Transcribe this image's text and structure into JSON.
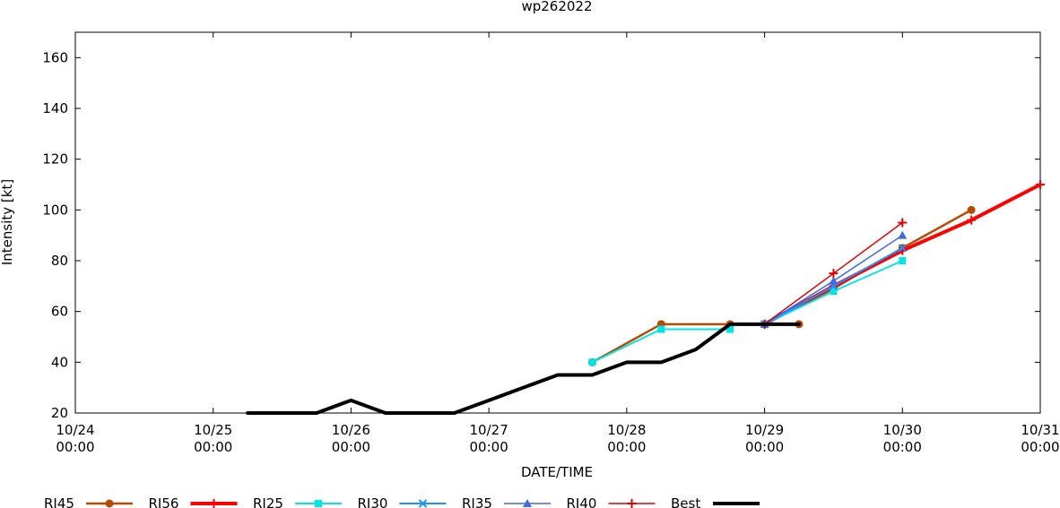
{
  "chart_data": {
    "type": "line",
    "title": "wp262022",
    "xlabel": "DATE/TIME",
    "ylabel": "Intensity [kt]",
    "x_ticks": [
      {
        "date": "10/24",
        "time": "00:00"
      },
      {
        "date": "10/25",
        "time": "00:00"
      },
      {
        "date": "10/26",
        "time": "00:00"
      },
      {
        "date": "10/27",
        "time": "00:00"
      },
      {
        "date": "10/28",
        "time": "00:00"
      },
      {
        "date": "10/29",
        "time": "00:00"
      },
      {
        "date": "10/30",
        "time": "00:00"
      },
      {
        "date": "10/31",
        "time": "00:00"
      }
    ],
    "xlim": [
      "10/24 00:00",
      "10/31 00:00"
    ],
    "ylim": [
      20,
      170
    ],
    "y_ticks": [
      20,
      40,
      60,
      80,
      100,
      120,
      140,
      160
    ],
    "grid": false,
    "legend_position": "bottom",
    "series": [
      {
        "name": "RI45",
        "color": "#b84a00",
        "width": 2.5,
        "marker": "circle",
        "points": [
          {
            "x": "10/28 06:00",
            "y": 55
          },
          {
            "x": "10/28 18:00",
            "y": 55
          },
          {
            "x": "10/29 00:00",
            "y": 55
          },
          {
            "x": "10/29 06:00",
            "y": 55
          }
        ]
      },
      {
        "name": "RI45",
        "color": "#b84a00",
        "width": 2.5,
        "marker": "circle",
        "points": [
          {
            "x": "10/27 18:00",
            "y": 40
          },
          {
            "x": "10/28 06:00",
            "y": 55
          }
        ]
      },
      {
        "name": "RI45",
        "color": "#b84a00",
        "width": 2.5,
        "marker": "circle",
        "points": [
          {
            "x": "10/29 00:00",
            "y": 55
          },
          {
            "x": "10/29 12:00",
            "y": 69
          },
          {
            "x": "10/30 00:00",
            "y": 85
          },
          {
            "x": "10/30 12:00",
            "y": 100
          }
        ]
      },
      {
        "name": "RI56",
        "color": "#ff0000",
        "width": 4,
        "marker": "plus",
        "points": [
          {
            "x": "10/29 00:00",
            "y": 55
          },
          {
            "x": "10/29 12:00",
            "y": 70
          },
          {
            "x": "10/30 00:00",
            "y": 84
          },
          {
            "x": "10/30 12:00",
            "y": 96
          },
          {
            "x": "10/31 00:00",
            "y": 110
          }
        ]
      },
      {
        "name": "RI25",
        "color": "#00e5e5",
        "width": 2,
        "marker": "square",
        "points": [
          {
            "x": "10/27 18:00",
            "y": 40
          },
          {
            "x": "10/28 06:00",
            "y": 53
          },
          {
            "x": "10/28 18:00",
            "y": 53
          }
        ]
      },
      {
        "name": "RI25",
        "color": "#00e5e5",
        "width": 2,
        "marker": "square",
        "points": [
          {
            "x": "10/29 00:00",
            "y": 55
          },
          {
            "x": "10/29 12:00",
            "y": 68
          },
          {
            "x": "10/30 00:00",
            "y": 80
          }
        ]
      },
      {
        "name": "RI30",
        "color": "#1e90ff",
        "width": 2,
        "marker": "x",
        "points": [
          {
            "x": "10/29 00:00",
            "y": 55
          },
          {
            "x": "10/29 12:00",
            "y": 70
          },
          {
            "x": "10/30 00:00",
            "y": 85
          }
        ]
      },
      {
        "name": "RI35",
        "color": "#4169e1",
        "width": 1.5,
        "marker": "triangle",
        "points": [
          {
            "x": "10/29 00:00",
            "y": 55
          },
          {
            "x": "10/29 12:00",
            "y": 72
          },
          {
            "x": "10/30 00:00",
            "y": 90
          }
        ]
      },
      {
        "name": "RI40",
        "color": "#e00000",
        "width": 1.5,
        "marker": "plus",
        "points": [
          {
            "x": "10/29 00:00",
            "y": 55
          },
          {
            "x": "10/29 12:00",
            "y": 75
          },
          {
            "x": "10/30 00:00",
            "y": 95
          }
        ]
      },
      {
        "name": "Best",
        "color": "#000000",
        "width": 4,
        "marker": "none",
        "points": [
          {
            "x": "10/25 06:00",
            "y": 20
          },
          {
            "x": "10/25 12:00",
            "y": 20
          },
          {
            "x": "10/25 18:00",
            "y": 20
          },
          {
            "x": "10/26 00:00",
            "y": 25
          },
          {
            "x": "10/26 06:00",
            "y": 20
          },
          {
            "x": "10/26 12:00",
            "y": 20
          },
          {
            "x": "10/26 18:00",
            "y": 20
          },
          {
            "x": "10/27 00:00",
            "y": 25
          },
          {
            "x": "10/27 06:00",
            "y": 30
          },
          {
            "x": "10/27 12:00",
            "y": 35
          },
          {
            "x": "10/27 18:00",
            "y": 35
          },
          {
            "x": "10/28 00:00",
            "y": 40
          },
          {
            "x": "10/28 06:00",
            "y": 40
          },
          {
            "x": "10/28 12:00",
            "y": 45
          },
          {
            "x": "10/28 18:00",
            "y": 55
          },
          {
            "x": "10/29 00:00",
            "y": 55
          },
          {
            "x": "10/29 06:00",
            "y": 55
          }
        ]
      }
    ],
    "legend": [
      {
        "name": "RI45",
        "color": "#b84a00",
        "width": 2.5,
        "marker": "circle"
      },
      {
        "name": "RI56",
        "color": "#ff0000",
        "width": 4,
        "marker": "plus"
      },
      {
        "name": "RI25",
        "color": "#00e5e5",
        "width": 2,
        "marker": "square"
      },
      {
        "name": "RI30",
        "color": "#1e90ff",
        "width": 2,
        "marker": "x"
      },
      {
        "name": "RI35",
        "color": "#4169e1",
        "width": 1.5,
        "marker": "triangle"
      },
      {
        "name": "RI40",
        "color": "#e00000",
        "width": 1.5,
        "marker": "plus"
      },
      {
        "name": "Best",
        "color": "#000000",
        "width": 4,
        "marker": "none"
      }
    ]
  }
}
